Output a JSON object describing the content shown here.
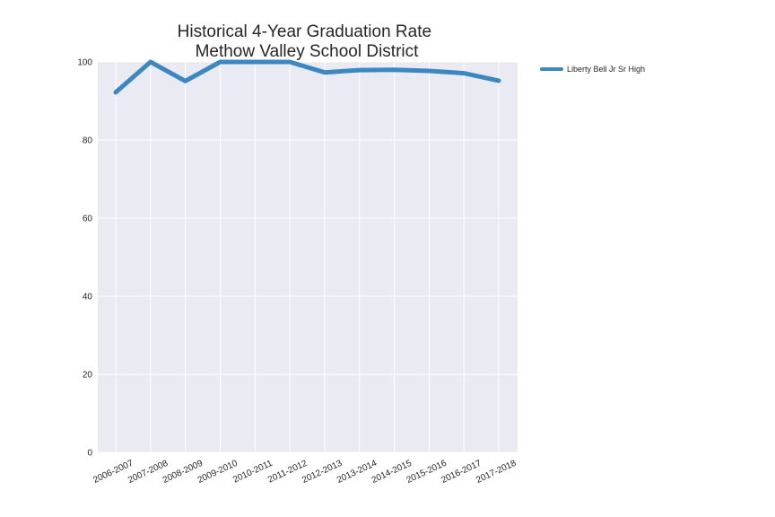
{
  "chart_data": {
    "type": "line",
    "title": "Historical 4-Year Graduation Rate\nMethow Valley School District",
    "title_lines": [
      "Historical 4-Year Graduation Rate",
      "Methow Valley School District"
    ],
    "xlabel": "",
    "ylabel": "",
    "categories": [
      "2006-2007",
      "2007-2008",
      "2008-2009",
      "2009-2010",
      "2010-2011",
      "2011-2012",
      "2012-2013",
      "2013-2014",
      "2014-2015",
      "2015-2016",
      "2016-2017",
      "2017-2018"
    ],
    "series": [
      {
        "name": "Liberty Bell Jr Sr High",
        "color": "#3a87c2",
        "values": [
          92.2,
          100,
          95.1,
          100,
          100,
          100,
          97.3,
          97.9,
          98.0,
          97.7,
          97.1,
          95.2
        ]
      }
    ],
    "ylim": [
      0,
      100
    ],
    "yticks": [
      0,
      20,
      40,
      60,
      80,
      100
    ],
    "grid": true,
    "background": "#eaeaf2",
    "legend_position": "outside-top-right"
  }
}
